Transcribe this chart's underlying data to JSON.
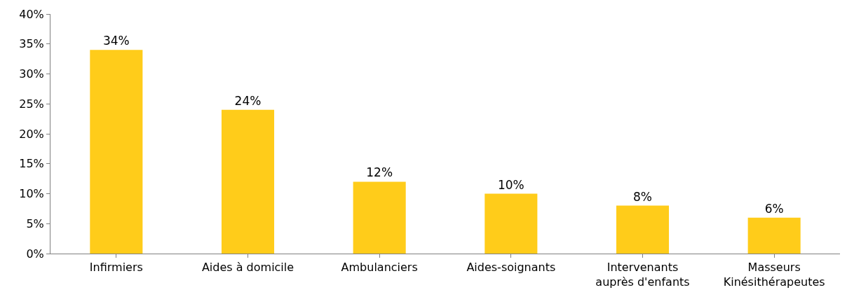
{
  "chart_data": {
    "type": "bar",
    "categories": [
      "Infirmiers",
      "Aides à domicile",
      "Ambulanciers",
      "Aides-soignants",
      "Intervenants\nauprès d'enfants",
      "Masseurs\nKinésithérapeutes"
    ],
    "values": [
      34,
      24,
      12,
      10,
      8,
      6
    ],
    "value_labels": [
      "34%",
      "24%",
      "12%",
      "10%",
      "8%",
      "6%"
    ],
    "color": "#ffcc1a",
    "ylim": [
      0,
      40
    ],
    "yticks": [
      {
        "value": 0,
        "label": "0%"
      },
      {
        "value": 5,
        "label": "5%"
      },
      {
        "value": 10,
        "label": "10%"
      },
      {
        "value": 15,
        "label": "15%"
      },
      {
        "value": 20,
        "label": "20%"
      },
      {
        "value": 25,
        "label": "25%"
      },
      {
        "value": 30,
        "label": "30%"
      },
      {
        "value": 35,
        "label": "35%"
      },
      {
        "value": 40,
        "label": "40%"
      }
    ]
  }
}
